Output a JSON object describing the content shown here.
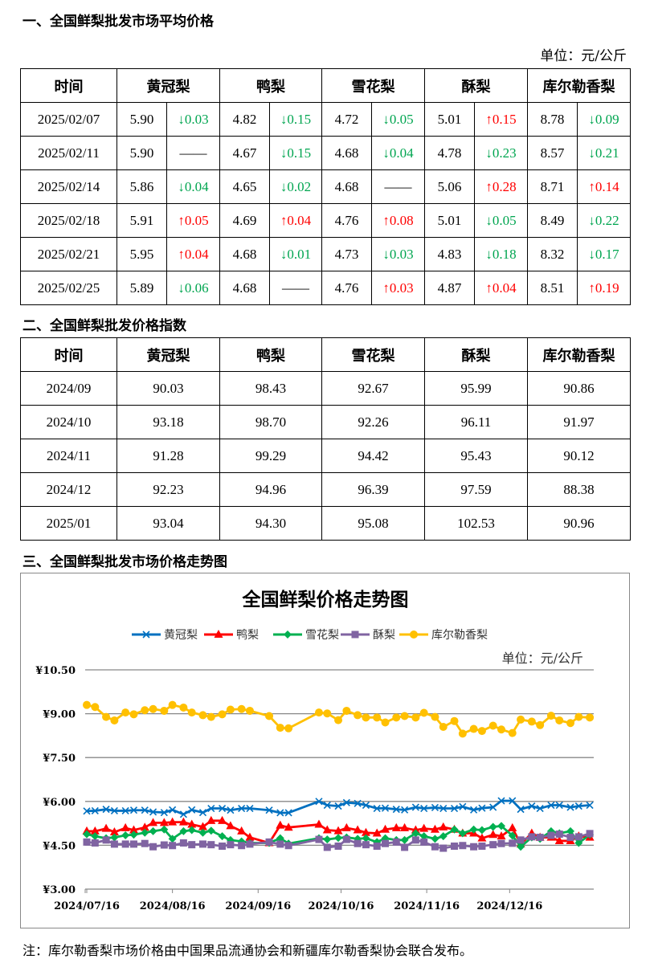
{
  "section1": {
    "title": "一、全国鲜梨批发市场平均价格",
    "unit": "单位：元/公斤"
  },
  "table1": {
    "headers": [
      "时间",
      "黄冠梨",
      "鸭梨",
      "雪花梨",
      "酥梨",
      "库尔勒香梨"
    ],
    "rows": [
      {
        "date": "2025/02/07",
        "cells": [
          [
            "5.90",
            "down",
            "↓0.03"
          ],
          [
            "4.82",
            "down",
            "↓0.15"
          ],
          [
            "4.72",
            "down",
            "↓0.05"
          ],
          [
            "5.01",
            "up",
            "↑0.15"
          ],
          [
            "8.78",
            "down",
            "↓0.09"
          ]
        ]
      },
      {
        "date": "2025/02/11",
        "cells": [
          [
            "5.90",
            "flat",
            "——"
          ],
          [
            "4.67",
            "down",
            "↓0.15"
          ],
          [
            "4.68",
            "down",
            "↓0.04"
          ],
          [
            "4.78",
            "down",
            "↓0.23"
          ],
          [
            "8.57",
            "down",
            "↓0.21"
          ]
        ]
      },
      {
        "date": "2025/02/14",
        "cells": [
          [
            "5.86",
            "down",
            "↓0.04"
          ],
          [
            "4.65",
            "down",
            "↓0.02"
          ],
          [
            "4.68",
            "flat",
            "——"
          ],
          [
            "5.06",
            "up",
            "↑0.28"
          ],
          [
            "8.71",
            "up",
            "↑0.14"
          ]
        ]
      },
      {
        "date": "2025/02/18",
        "cells": [
          [
            "5.91",
            "up",
            "↑0.05"
          ],
          [
            "4.69",
            "up",
            "↑0.04"
          ],
          [
            "4.76",
            "up",
            "↑0.08"
          ],
          [
            "5.01",
            "down",
            "↓0.05"
          ],
          [
            "8.49",
            "down",
            "↓0.22"
          ]
        ]
      },
      {
        "date": "2025/02/21",
        "cells": [
          [
            "5.95",
            "up",
            "↑0.04"
          ],
          [
            "4.68",
            "down",
            "↓0.01"
          ],
          [
            "4.73",
            "down",
            "↓0.03"
          ],
          [
            "4.83",
            "down",
            "↓0.18"
          ],
          [
            "8.32",
            "down",
            "↓0.17"
          ]
        ]
      },
      {
        "date": "2025/02/25",
        "cells": [
          [
            "5.89",
            "down",
            "↓0.06"
          ],
          [
            "4.68",
            "flat",
            "——"
          ],
          [
            "4.76",
            "up",
            "↑0.03"
          ],
          [
            "4.87",
            "up",
            "↑0.04"
          ],
          [
            "8.51",
            "up",
            "↑0.19"
          ]
        ]
      }
    ]
  },
  "section2": {
    "title": "二、全国鲜梨批发价格指数"
  },
  "table2": {
    "headers": [
      "时间",
      "黄冠梨",
      "鸭梨",
      "雪花梨",
      "酥梨",
      "库尔勒香梨"
    ],
    "rows": [
      [
        "2024/09",
        "90.03",
        "98.43",
        "92.67",
        "95.99",
        "90.86"
      ],
      [
        "2024/10",
        "93.18",
        "98.70",
        "92.26",
        "96.11",
        "91.97"
      ],
      [
        "2024/11",
        "91.28",
        "99.29",
        "94.42",
        "95.43",
        "90.12"
      ],
      [
        "2024/12",
        "92.23",
        "94.96",
        "96.39",
        "97.59",
        "88.38"
      ],
      [
        "2025/01",
        "93.04",
        "94.30",
        "95.08",
        "102.53",
        "90.96"
      ]
    ]
  },
  "section3": {
    "title": "三、全国鲜梨批发市场价格走势图"
  },
  "colors": {
    "up": "#ff0000",
    "down": "#00a550"
  },
  "chart_data": {
    "type": "line",
    "title": "全国鲜梨价格走势图",
    "unit": "单位：元/公斤",
    "legend_position": "top",
    "grid": true,
    "ylim": [
      3.0,
      10.5
    ],
    "yticks": [
      "¥10.50",
      "¥9.00",
      "¥7.50",
      "¥6.00",
      "¥4.50",
      "¥3.00"
    ],
    "yticks_values": [
      10.5,
      9.0,
      7.5,
      6.0,
      4.5,
      3.0
    ],
    "xticks": [
      "2024/07/16",
      "2024/08/16",
      "2024/09/16",
      "2024/10/16",
      "2024/11/16",
      "2024/12/16"
    ],
    "xlim": [
      "2024/07/16",
      "2025/01/16"
    ],
    "x": [
      "2024/07/16",
      "2024/07/19",
      "2024/07/23",
      "2024/07/26",
      "2024/07/30",
      "2024/08/02",
      "2024/08/06",
      "2024/08/09",
      "2024/08/13",
      "2024/08/16",
      "2024/08/20",
      "2024/08/23",
      "2024/08/27",
      "2024/08/30",
      "2024/09/03",
      "2024/09/06",
      "2024/09/10",
      "2024/09/13",
      "2024/09/20",
      "2024/09/24",
      "2024/09/27",
      "2024/10/08",
      "2024/10/11",
      "2024/10/15",
      "2024/10/18",
      "2024/10/22",
      "2024/10/25",
      "2024/10/29",
      "2024/11/01",
      "2024/11/05",
      "2024/11/08",
      "2024/11/12",
      "2024/11/15",
      "2024/11/19",
      "2024/11/22",
      "2024/11/26",
      "2024/11/29",
      "2024/12/03",
      "2024/12/06",
      "2024/12/10",
      "2024/12/13",
      "2024/12/17",
      "2024/12/20",
      "2024/12/24",
      "2024/12/27",
      "2024/12/31",
      "2025/01/03",
      "2025/01/07",
      "2025/01/10",
      "2025/01/14"
    ],
    "series": [
      {
        "name": "黄冠梨",
        "color": "#0070c0",
        "marker": "x",
        "values": [
          5.67,
          5.68,
          5.73,
          5.68,
          5.68,
          5.7,
          5.7,
          5.64,
          5.62,
          5.71,
          5.56,
          5.71,
          5.62,
          5.76,
          5.76,
          5.7,
          5.76,
          5.76,
          5.7,
          5.61,
          5.61,
          6.0,
          5.87,
          5.84,
          5.96,
          5.93,
          5.87,
          5.76,
          5.77,
          5.73,
          5.71,
          5.8,
          5.76,
          5.79,
          5.76,
          5.76,
          5.82,
          5.71,
          5.77,
          5.8,
          6.02,
          6.02,
          5.73,
          5.84,
          5.76,
          5.87,
          5.87,
          5.8,
          5.84,
          5.87
        ]
      },
      {
        "name": "鸭梨",
        "color": "#ff0000",
        "marker": "triangle",
        "values": [
          4.98,
          4.98,
          5.07,
          4.95,
          5.09,
          5.02,
          5.11,
          5.27,
          5.27,
          5.29,
          5.29,
          5.21,
          5.13,
          5.34,
          5.34,
          5.16,
          4.98,
          4.77,
          4.58,
          5.18,
          5.11,
          5.21,
          5.02,
          4.99,
          5.09,
          5.02,
          4.93,
          4.91,
          5.04,
          5.09,
          5.09,
          5.02,
          5.07,
          5.04,
          5.12,
          5.04,
          4.91,
          4.91,
          4.74,
          4.86,
          4.81,
          5.09,
          4.54,
          4.91,
          4.77,
          4.77,
          4.65,
          4.65,
          4.81,
          4.77
        ]
      },
      {
        "name": "雪花梨",
        "color": "#00b050",
        "marker": "diamond",
        "values": [
          4.88,
          4.81,
          4.74,
          4.77,
          4.84,
          4.86,
          4.93,
          4.98,
          5.04,
          4.72,
          4.98,
          5.02,
          4.93,
          5.0,
          4.81,
          4.68,
          4.63,
          4.58,
          4.58,
          4.74,
          4.56,
          4.74,
          4.7,
          4.75,
          4.77,
          4.72,
          4.74,
          4.61,
          4.74,
          4.68,
          4.68,
          4.91,
          4.81,
          4.72,
          4.81,
          5.04,
          4.91,
          5.04,
          5.02,
          5.13,
          5.16,
          4.83,
          4.45,
          4.77,
          4.72,
          4.98,
          4.91,
          4.98,
          4.58,
          4.86
        ]
      },
      {
        "name": "酥梨",
        "color": "#8064a2",
        "marker": "square",
        "values": [
          4.61,
          4.58,
          4.68,
          4.54,
          4.54,
          4.54,
          4.56,
          4.45,
          4.51,
          4.49,
          4.58,
          4.52,
          4.54,
          4.52,
          4.47,
          4.52,
          4.49,
          4.54,
          4.61,
          4.54,
          4.49,
          4.7,
          4.43,
          4.47,
          4.7,
          4.56,
          4.52,
          4.47,
          4.56,
          4.61,
          4.43,
          4.68,
          4.61,
          4.45,
          4.4,
          4.47,
          4.49,
          4.45,
          4.47,
          4.52,
          4.56,
          4.57,
          4.68,
          4.79,
          4.77,
          4.84,
          4.88,
          4.77,
          4.79,
          4.9
        ]
      },
      {
        "name": "库尔勒香梨",
        "color": "#ffc000",
        "marker": "circle",
        "values": [
          9.3,
          9.23,
          8.89,
          8.77,
          9.04,
          8.98,
          9.12,
          9.16,
          9.1,
          9.3,
          9.21,
          9.04,
          8.95,
          8.89,
          8.98,
          9.14,
          9.16,
          9.1,
          8.92,
          8.52,
          8.5,
          9.04,
          9.01,
          8.78,
          9.1,
          8.95,
          8.87,
          8.87,
          8.7,
          8.87,
          8.92,
          8.87,
          9.03,
          8.89,
          8.55,
          8.75,
          8.32,
          8.48,
          8.41,
          8.59,
          8.46,
          8.34,
          8.8,
          8.73,
          8.61,
          8.93,
          8.77,
          8.68,
          8.89,
          8.87
        ]
      }
    ]
  },
  "note": "注：库尔勒香梨市场价格由中国果品流通协会和新疆库尔勒香梨协会联合发布。"
}
